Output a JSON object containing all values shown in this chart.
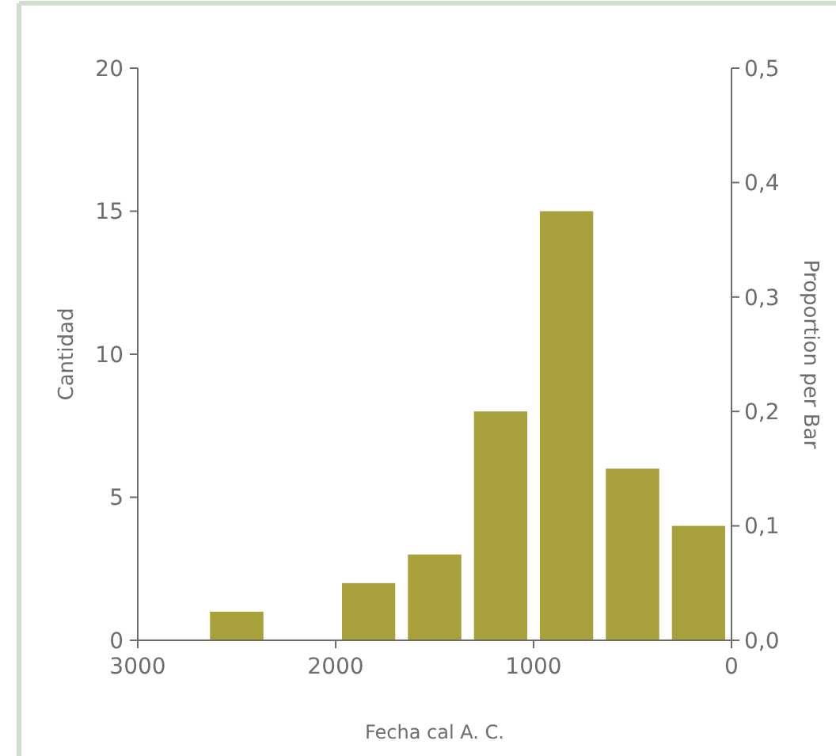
{
  "chart_data": {
    "type": "histogram",
    "xlabel": "Fecha cal A. C.",
    "ylabel": "Cantidad",
    "y2label": "Proportion per Bar",
    "bins": [
      3000,
      2667,
      2333,
      2000,
      1667,
      1333,
      1000,
      667,
      333,
      0
    ],
    "values": [
      0,
      1,
      0,
      2,
      3,
      8,
      15,
      6,
      4
    ],
    "color": "#a8a03a",
    "xlim": [
      3000,
      0
    ],
    "xticks": [
      3000,
      2000,
      1000,
      0
    ],
    "ylim": [
      0,
      20
    ],
    "yticks": [
      0,
      5,
      10,
      15,
      20
    ],
    "y2lim": [
      0,
      0.5
    ],
    "y2ticks": [
      {
        "value": 0,
        "label": "0,0"
      },
      {
        "value": 0.1,
        "label": "0,1"
      },
      {
        "value": 0.2,
        "label": "0,2"
      },
      {
        "value": 0.3,
        "label": "0,3"
      },
      {
        "value": 0.4,
        "label": "0,4"
      },
      {
        "value": 0.5,
        "label": "0,5"
      }
    ],
    "grid": false
  }
}
